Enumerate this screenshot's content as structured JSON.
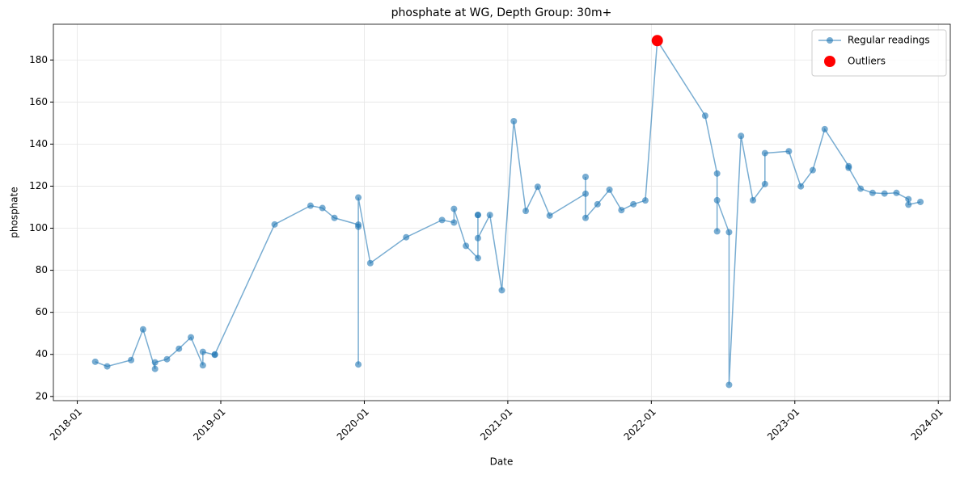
{
  "chart_data": {
    "type": "line",
    "title": "phosphate at WG, Depth Group: 30m+",
    "x_label": "Date",
    "y_label": "phosphate",
    "xlim": [
      "2017-11",
      "2024-02"
    ],
    "xticks": [
      "2018-01",
      "2019-01",
      "2020-01",
      "2021-01",
      "2022-01",
      "2023-01",
      "2024-01"
    ],
    "ylim": [
      18,
      197
    ],
    "yticks": [
      20,
      40,
      60,
      80,
      100,
      120,
      140,
      160,
      180
    ],
    "grid": true,
    "legend": "upper right",
    "series": [
      {
        "name": "Regular readings",
        "color": "#1f77b4",
        "x": [
          "2018-02",
          "2018-03",
          "2018-05",
          "2018-06",
          "2018-07",
          "2018-07",
          "2018-08",
          "2018-09",
          "2018-10",
          "2018-11",
          "2018-11",
          "2018-12",
          "2018-12",
          "2019-05",
          "2019-08",
          "2019-09",
          "2019-10",
          "2019-12",
          "2019-12",
          "2019-12",
          "2019-12",
          "2020-01",
          "2020-04",
          "2020-07",
          "2020-08",
          "2020-08",
          "2020-09",
          "2020-10",
          "2020-10",
          "2020-10",
          "2020-10",
          "2020-11",
          "2020-12",
          "2021-01",
          "2021-02",
          "2021-03",
          "2021-04",
          "2021-07",
          "2021-07",
          "2021-07",
          "2021-08",
          "2021-09",
          "2021-10",
          "2021-11",
          "2021-12",
          "2022-01",
          "2022-05",
          "2022-06",
          "2022-06",
          "2022-06",
          "2022-07",
          "2022-07",
          "2022-08",
          "2022-09",
          "2022-10",
          "2022-10",
          "2022-12",
          "2023-01",
          "2023-02",
          "2023-03",
          "2023-05",
          "2023-05",
          "2023-06",
          "2023-07",
          "2023-08",
          "2023-09",
          "2023-10",
          "2023-10",
          "2023-11"
        ],
        "values": [
          36.5,
          34.3,
          37.3,
          51.9,
          33.1,
          36.2,
          37.7,
          42.7,
          48.1,
          34.8,
          41.2,
          39.8,
          40.0,
          101.8,
          110.7,
          109.6,
          104.9,
          101.7,
          100.7,
          35.2,
          114.6,
          83.4,
          95.7,
          103.9,
          102.7,
          109.2,
          91.6,
          85.8,
          106.3,
          106.3,
          95.3,
          106.3,
          70.5,
          150.9,
          108.2,
          119.7,
          106.0,
          116.4,
          124.4,
          104.9,
          111.4,
          118.3,
          108.6,
          111.4,
          113.2,
          189.2,
          153.5,
          126.0,
          98.5,
          113.3,
          98.1,
          25.5,
          143.9,
          113.3,
          121.0,
          135.7,
          136.6,
          119.9,
          127.6,
          147.1,
          129.5,
          128.7,
          118.8,
          116.8,
          116.5,
          116.8,
          113.8,
          111.2,
          112.5
        ]
      },
      {
        "name": "Outliers",
        "color": "#ff0000",
        "x": [
          "2022-01"
        ],
        "values": [
          189.2
        ]
      }
    ]
  }
}
